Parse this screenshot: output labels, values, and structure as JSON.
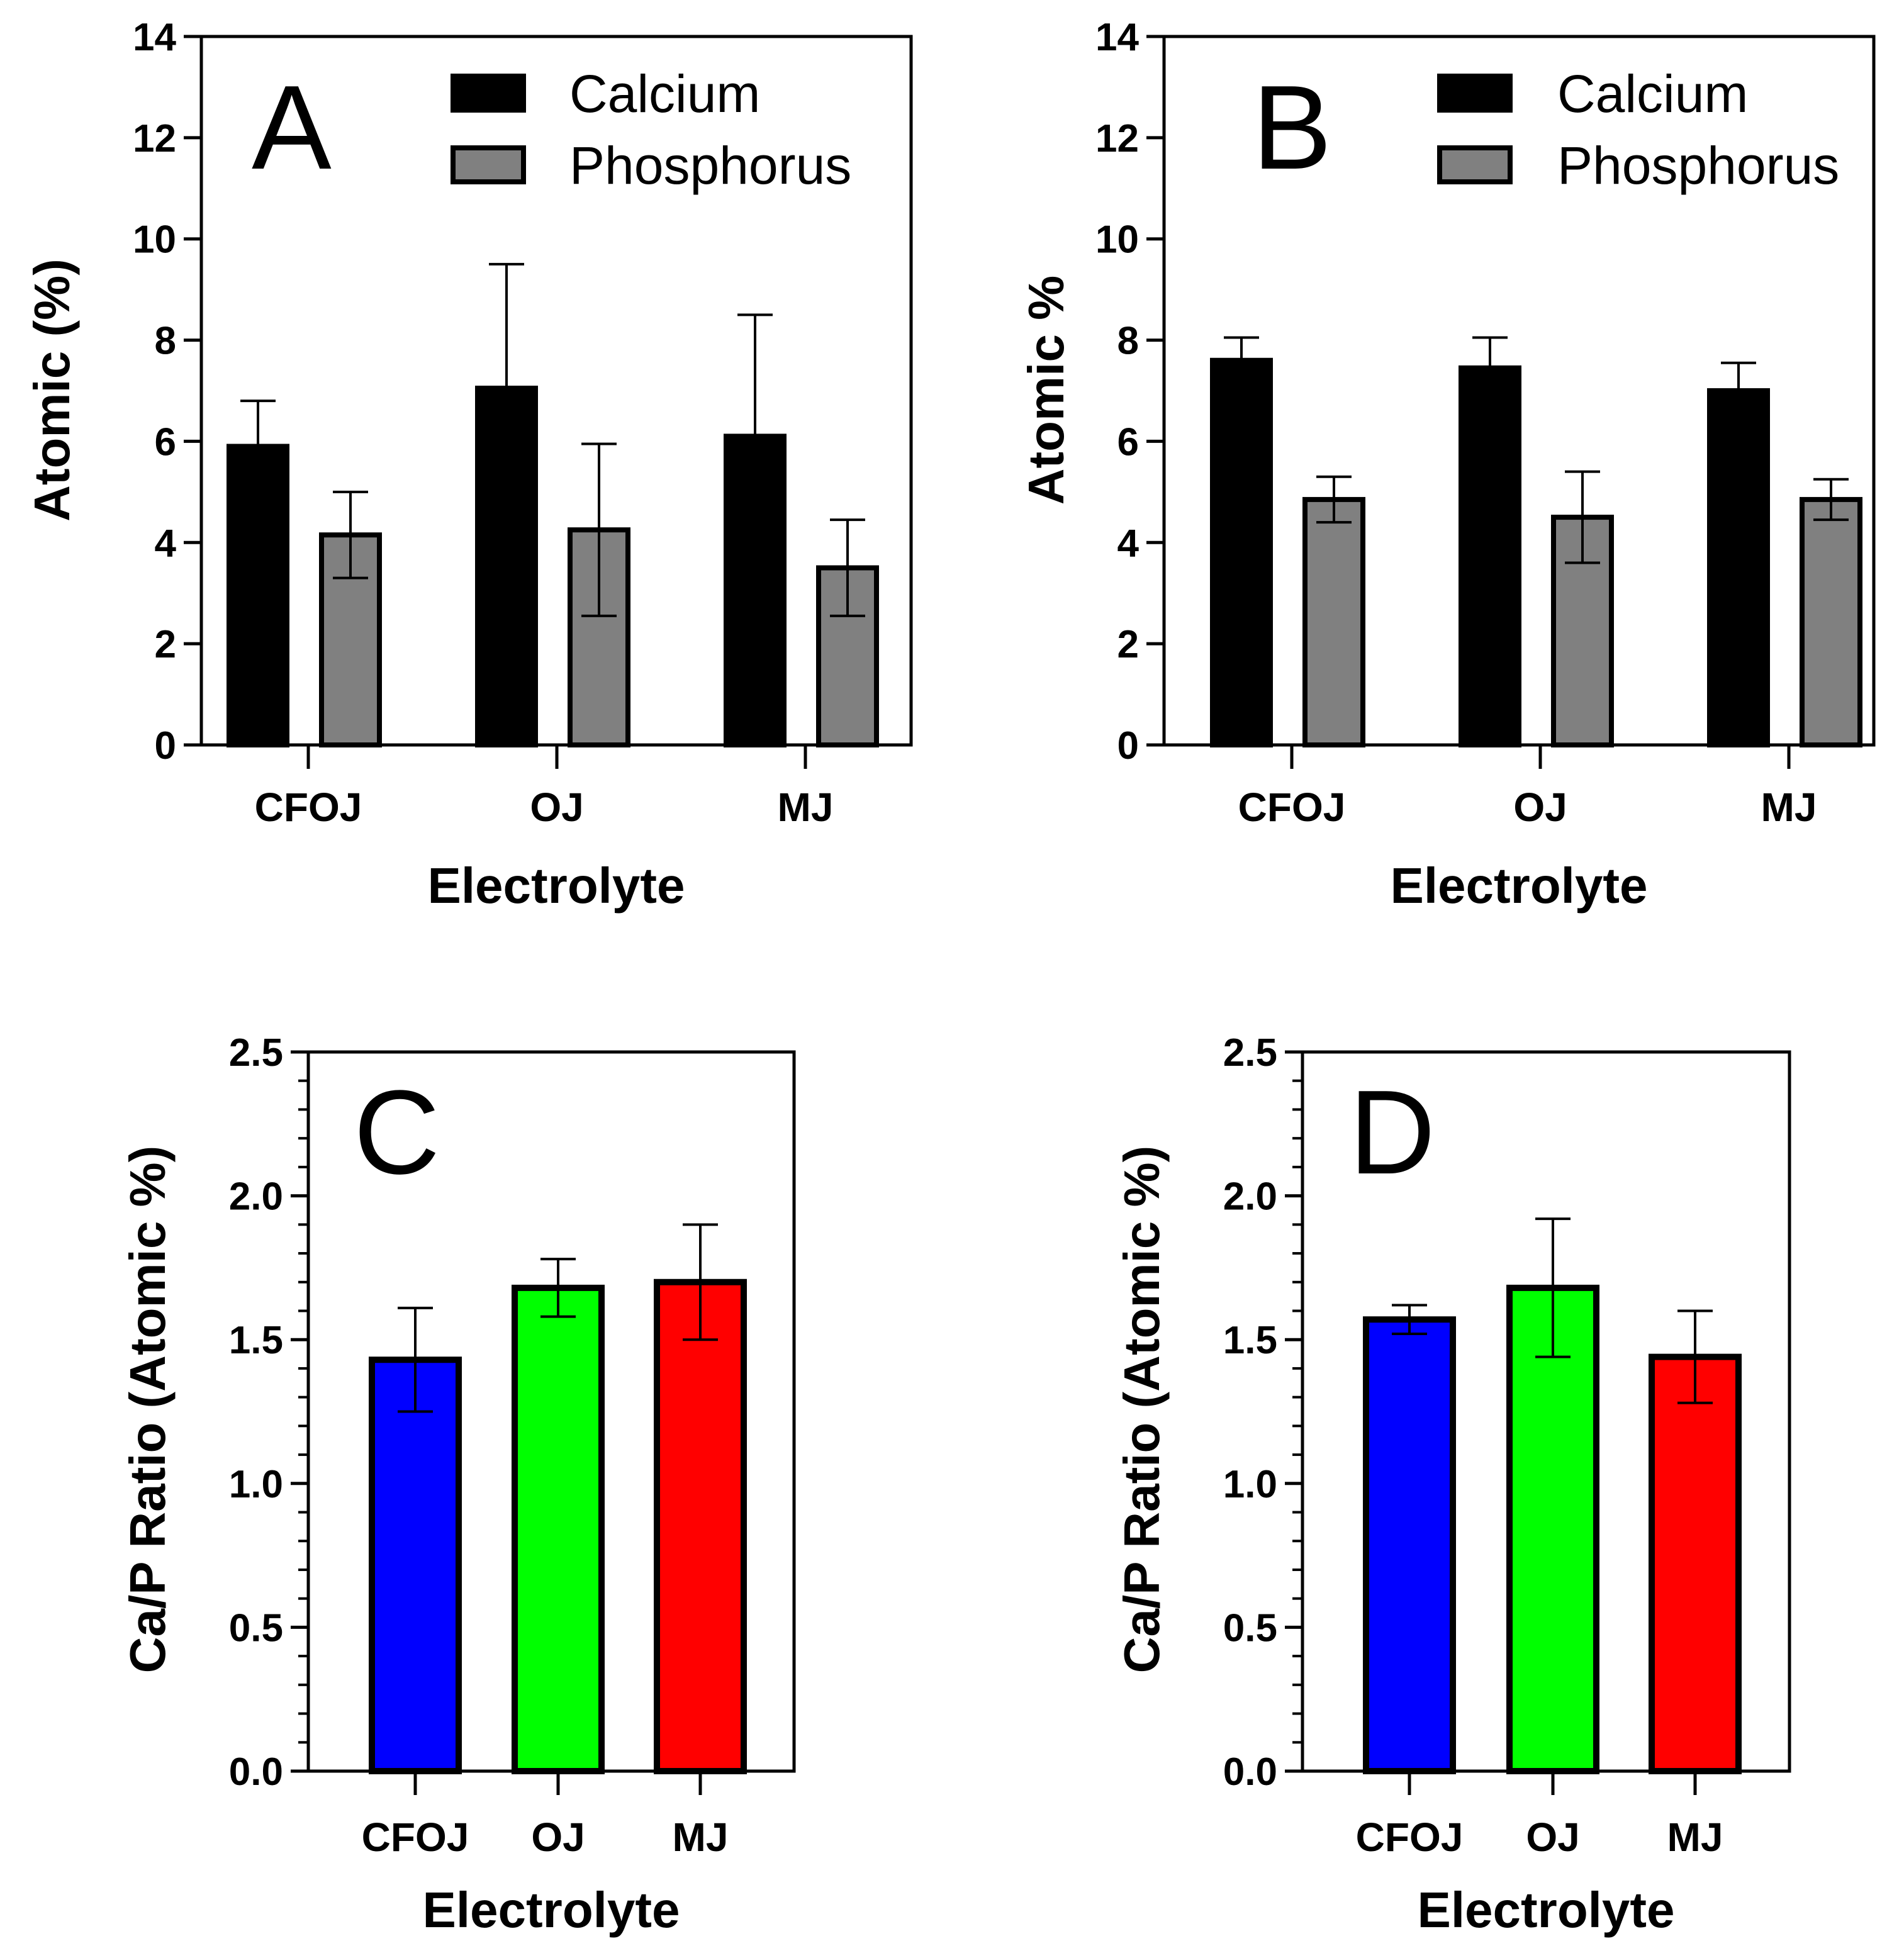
{
  "chart_data": [
    {
      "type": "bar",
      "panel_label": "A",
      "categories": [
        "CFOJ",
        "OJ",
        "MJ"
      ],
      "series": [
        {
          "name": "Calcium",
          "values": [
            5.9,
            7.05,
            6.1
          ],
          "errors": [
            0.9,
            2.45,
            2.4
          ],
          "color": "#000000"
        },
        {
          "name": "Phosphorus",
          "values": [
            4.15,
            4.25,
            3.5
          ],
          "errors": [
            0.85,
            1.7,
            0.95
          ],
          "color": "#808080"
        }
      ],
      "xlabel": "Electrolyte",
      "ylabel": "Atomic (%)",
      "ylim": [
        0,
        14
      ],
      "yticks": [
        "0",
        "2",
        "4",
        "6",
        "8",
        "10",
        "12",
        "14"
      ],
      "legend_position": "top-right",
      "grid": false
    },
    {
      "type": "bar",
      "panel_label": "B",
      "categories": [
        "CFOJ",
        "OJ",
        "MJ"
      ],
      "series": [
        {
          "name": "Calcium",
          "values": [
            7.6,
            7.45,
            7.0
          ],
          "errors": [
            0.45,
            0.6,
            0.55
          ],
          "color": "#000000"
        },
        {
          "name": "Phosphorus",
          "values": [
            4.85,
            4.5,
            4.85
          ],
          "errors": [
            0.45,
            0.9,
            0.4
          ],
          "color": "#808080"
        }
      ],
      "xlabel": "Electrolyte",
      "ylabel": "Atomic %",
      "ylim": [
        0,
        14
      ],
      "yticks": [
        "0",
        "2",
        "4",
        "6",
        "8",
        "10",
        "12",
        "14"
      ],
      "legend_position": "top-right",
      "grid": false
    },
    {
      "type": "bar",
      "panel_label": "C",
      "categories": [
        "CFOJ",
        "OJ",
        "MJ"
      ],
      "values": [
        1.43,
        1.68,
        1.7
      ],
      "errors": [
        0.18,
        0.1,
        0.2
      ],
      "colors": [
        "#0000ff",
        "#00ff00",
        "#ff0000"
      ],
      "xlabel": "Electrolyte",
      "ylabel": "Ca/P Ratio (Atomic %)",
      "ylim": [
        0,
        2.5
      ],
      "yticks": [
        "0.0",
        "0.5",
        "1.0",
        "1.5",
        "2.0",
        "2.5"
      ],
      "grid": false
    },
    {
      "type": "bar",
      "panel_label": "D",
      "categories": [
        "CFOJ",
        "OJ",
        "MJ"
      ],
      "values": [
        1.57,
        1.68,
        1.44
      ],
      "errors": [
        0.05,
        0.24,
        0.16
      ],
      "colors": [
        "#0000ff",
        "#00ff00",
        "#ff0000"
      ],
      "xlabel": "Electrolyte",
      "ylabel": "Ca/P Ratio (Atomic %)",
      "ylim": [
        0,
        2.5
      ],
      "yticks": [
        "0.0",
        "0.5",
        "1.0",
        "1.5",
        "2.0",
        "2.5"
      ],
      "grid": false
    }
  ]
}
